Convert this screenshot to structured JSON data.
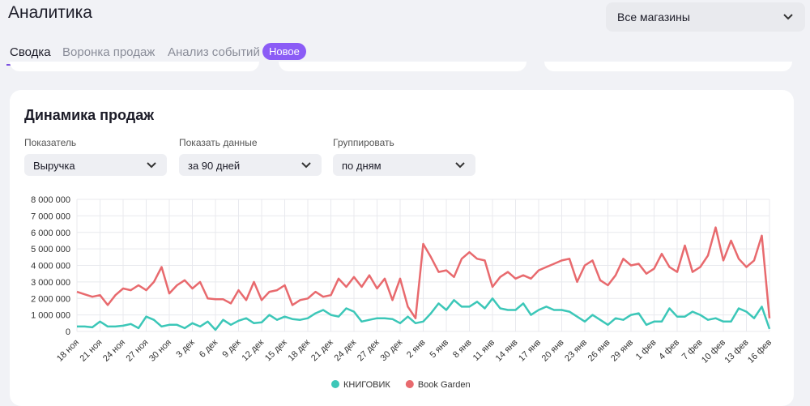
{
  "header": {
    "title": "Аналитика",
    "store_select": "Все магазины"
  },
  "tabs": [
    {
      "label": "Сводка"
    },
    {
      "label": "Воронка продаж"
    },
    {
      "label": "Анализ событий",
      "badge": "Новое"
    }
  ],
  "card": {
    "title": "Динамика продаж",
    "filters": [
      {
        "label": "Показатель",
        "value": "Выручка"
      },
      {
        "label": "Показать данные",
        "value": "за 90 дней"
      },
      {
        "label": "Группировать",
        "value": "по дням"
      }
    ]
  },
  "chart_data": {
    "type": "line",
    "categories": [
      "18 ноя",
      null,
      null,
      "21 ноя",
      null,
      null,
      "24 ноя",
      null,
      null,
      "27 ноя",
      null,
      null,
      "30 ноя",
      null,
      null,
      "3 дек",
      null,
      null,
      "6 дек",
      null,
      null,
      "9 дек",
      null,
      null,
      "12 дек",
      null,
      null,
      "15 дек",
      null,
      null,
      "18 дек",
      null,
      null,
      "21 дек",
      null,
      null,
      "24 дек",
      null,
      null,
      "27 дек",
      null,
      null,
      "30 дек",
      null,
      null,
      "2 янв",
      null,
      null,
      "5 янв",
      null,
      null,
      "8 янв",
      null,
      null,
      "11 янв",
      null,
      null,
      "14 янв",
      null,
      null,
      "17 янв",
      null,
      null,
      "20 янв",
      null,
      null,
      "23 янв",
      null,
      null,
      "26 янв",
      null,
      null,
      "29 янв",
      null,
      null,
      "1 фев",
      null,
      null,
      "4 фев",
      null,
      null,
      "7 фев",
      null,
      null,
      "10 фев",
      null,
      null,
      "13 фев",
      null,
      null,
      "16 фев"
    ],
    "series": [
      {
        "name": "КНИГОВИК",
        "color": "#3cc7b8",
        "values": [
          300000,
          300000,
          250000,
          600000,
          300000,
          300000,
          350000,
          450000,
          200000,
          900000,
          700000,
          300000,
          400000,
          400000,
          200000,
          500000,
          300000,
          600000,
          100000,
          700000,
          400000,
          650000,
          800000,
          500000,
          550000,
          1000000,
          700000,
          900000,
          750000,
          700000,
          800000,
          1100000,
          1300000,
          1000000,
          900000,
          1400000,
          1200000,
          600000,
          700000,
          800000,
          800000,
          750000,
          500000,
          900000,
          500000,
          600000,
          1100000,
          1700000,
          1300000,
          1900000,
          1500000,
          1500000,
          1800000,
          1400000,
          2000000,
          1400000,
          1300000,
          1300000,
          1700000,
          1000000,
          1300000,
          1500000,
          1300000,
          1300000,
          1200000,
          900000,
          600000,
          1000000,
          700000,
          400000,
          800000,
          700000,
          1000000,
          1100000,
          400000,
          600000,
          600000,
          1400000,
          900000,
          900000,
          1200000,
          1000000,
          700000,
          800000,
          600000,
          600000,
          1400000,
          1200000,
          800000,
          1500000,
          150000
        ]
      },
      {
        "name": "Book Garden",
        "color": "#e86a6e",
        "values": [
          2400000,
          2250000,
          2100000,
          2200000,
          1600000,
          2200000,
          2600000,
          2500000,
          2800000,
          2500000,
          3000000,
          3900000,
          2300000,
          2800000,
          3100000,
          2600000,
          3000000,
          2000000,
          1950000,
          1950000,
          1700000,
          2500000,
          1900000,
          3000000,
          1900000,
          2400000,
          2500000,
          2800000,
          1600000,
          1900000,
          2000000,
          2400000,
          2100000,
          2200000,
          3200000,
          2700000,
          3300000,
          2700000,
          3400000,
          2600000,
          3200000,
          1900000,
          3200000,
          1500000,
          800000,
          5300000,
          4500000,
          3600000,
          3700000,
          3300000,
          4400000,
          4800000,
          4400000,
          4300000,
          2700000,
          3300000,
          3600000,
          3200000,
          3400000,
          3200000,
          3700000,
          3900000,
          4100000,
          4300000,
          4400000,
          3000000,
          4000000,
          4300000,
          3100000,
          2800000,
          3400000,
          4400000,
          4000000,
          4100000,
          3500000,
          3800000,
          4700000,
          3900000,
          3600000,
          5200000,
          3600000,
          3900000,
          4600000,
          6300000,
          4300000,
          5500000,
          4400000,
          3900000,
          4300000,
          5800000,
          800000
        ]
      }
    ],
    "ylim": [
      0,
      8000000
    ],
    "yticks": [
      0,
      {
        "value": 1000000,
        "label": "1 000 000"
      },
      {
        "value": 2000000,
        "label": "2 000 000"
      },
      {
        "value": 3000000,
        "label": "3 000 000"
      },
      {
        "value": 4000000,
        "label": "4 000 000"
      },
      {
        "value": 5000000,
        "label": "5 000 000"
      },
      {
        "value": 6000000,
        "label": "6 000 000"
      },
      {
        "value": 7000000,
        "label": "7 000 000"
      },
      {
        "value": 8000000,
        "label": "8 000 000"
      }
    ],
    "grid": true
  }
}
